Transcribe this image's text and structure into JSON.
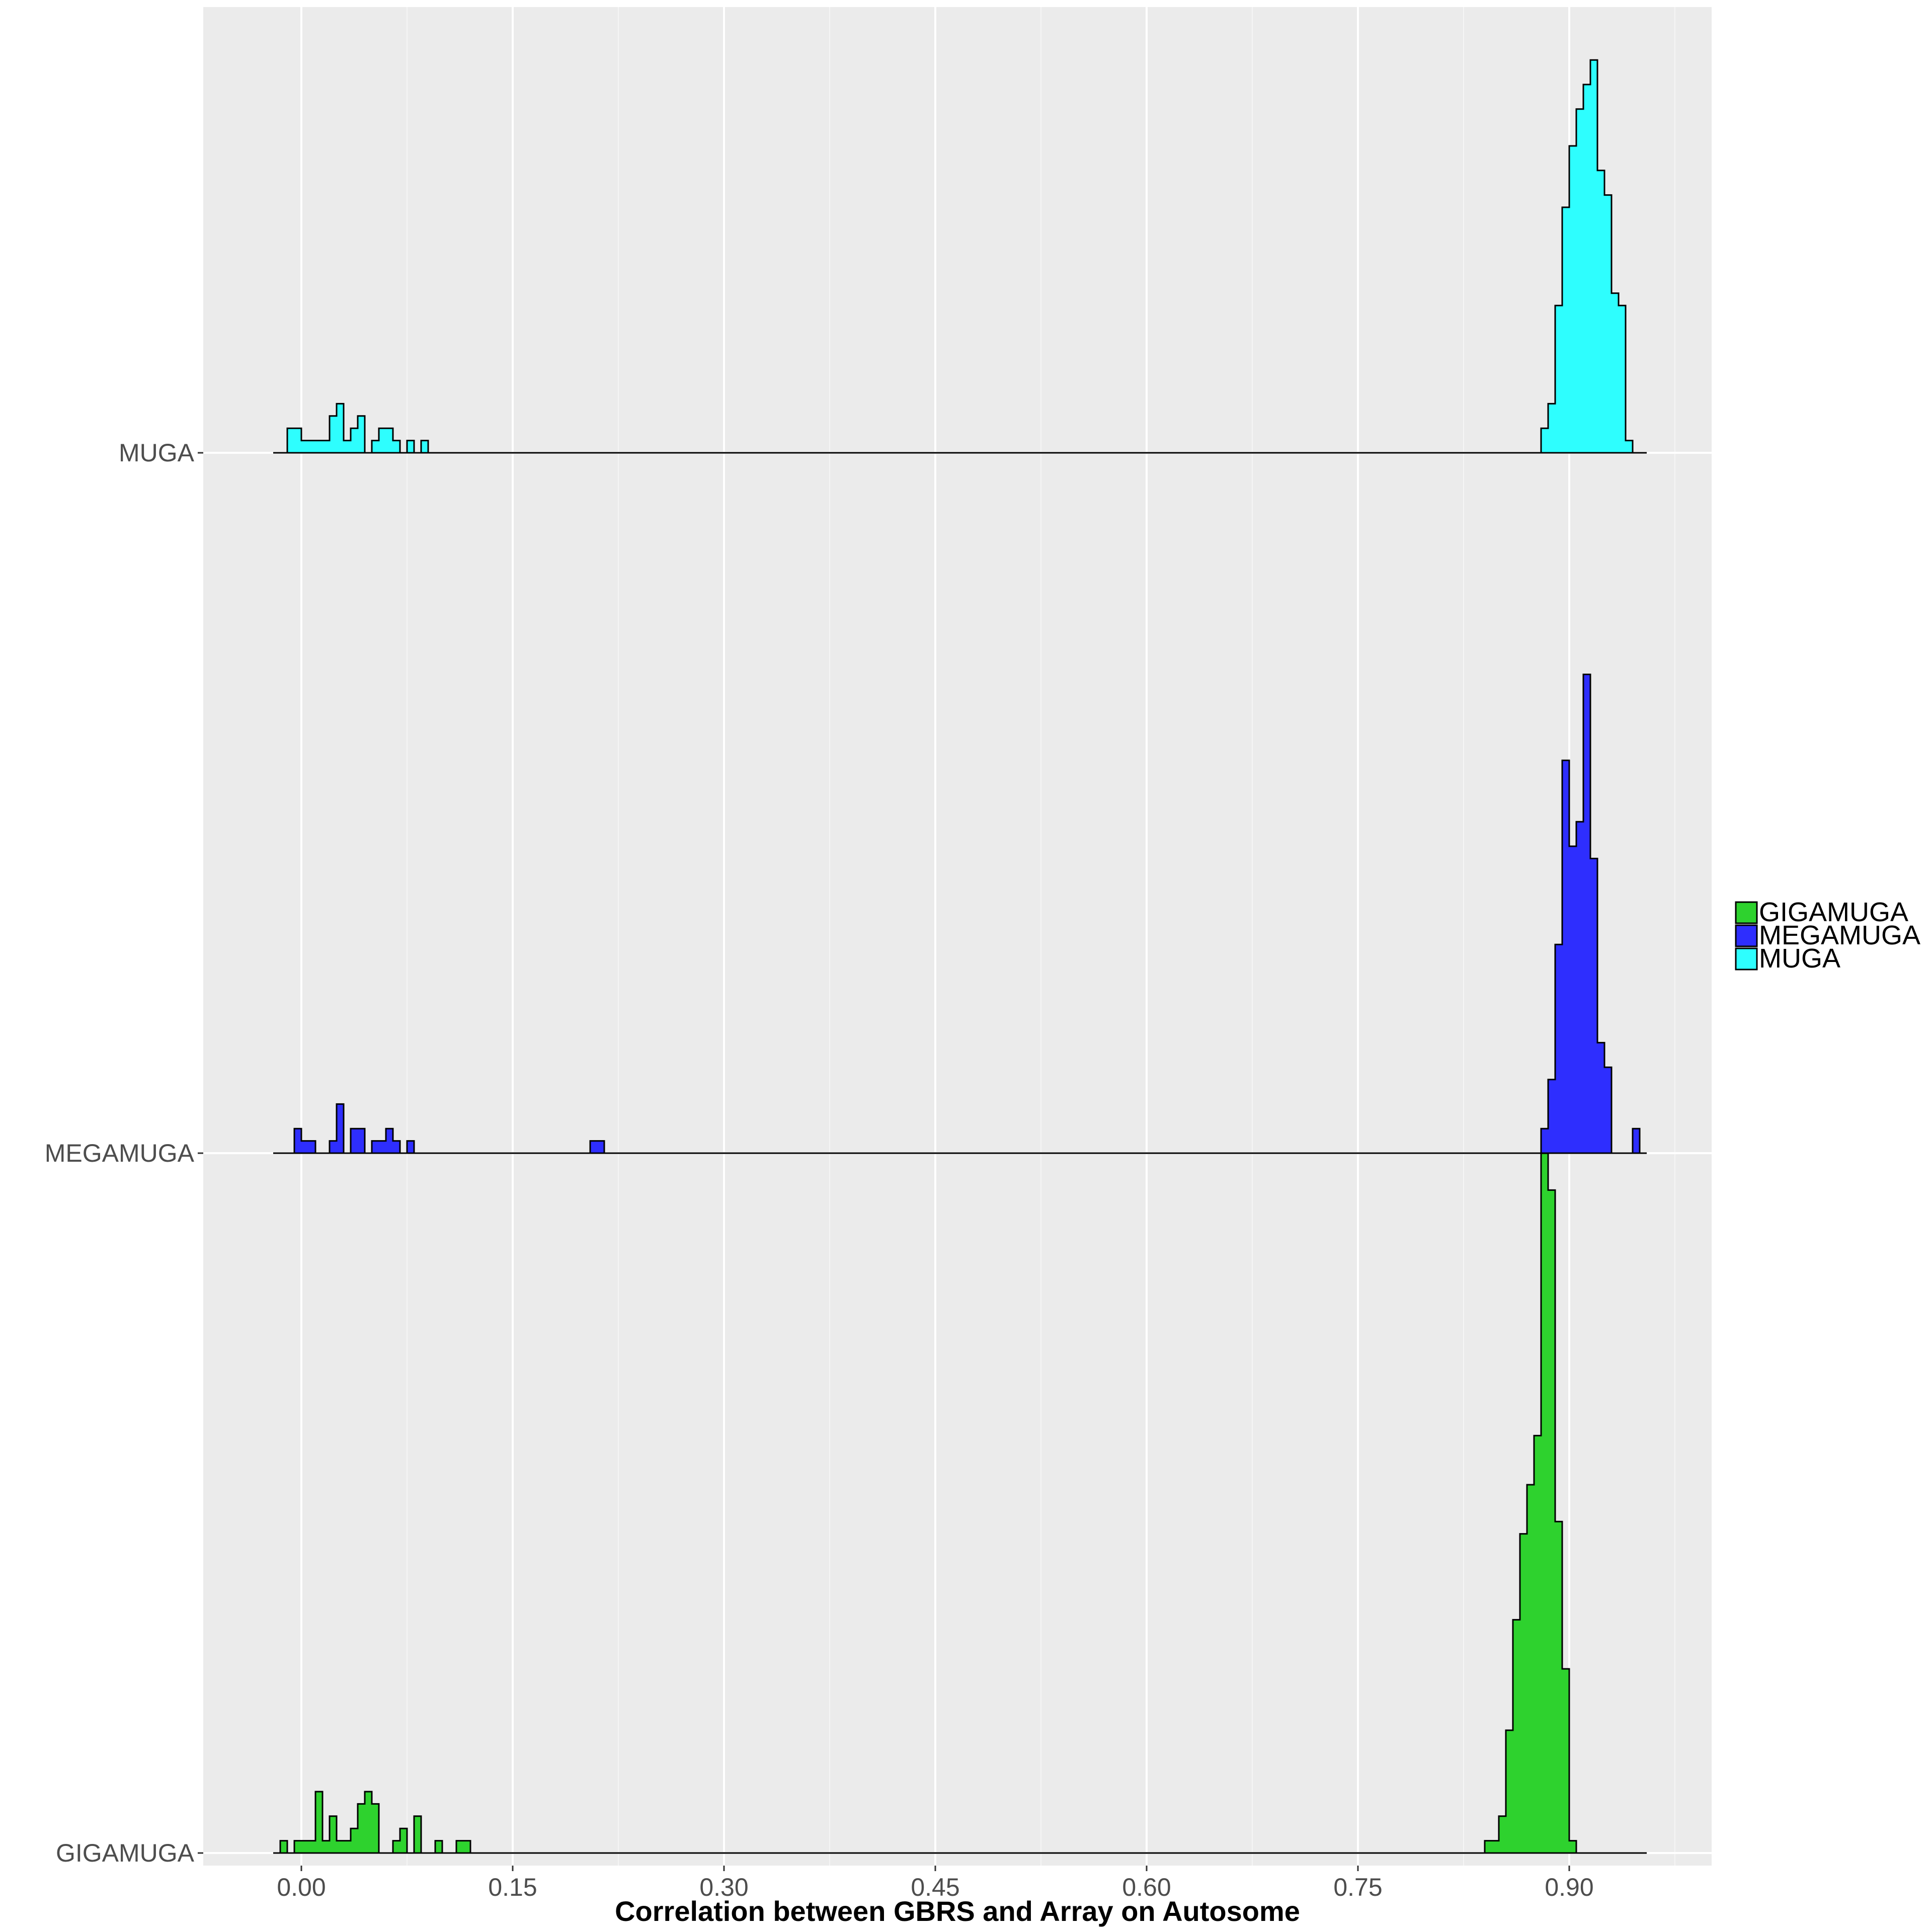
{
  "chart_data": {
    "type": "ridgeline-histogram",
    "title": "",
    "xlabel": "Correlation between GBRS and Array on Autosome",
    "ylabel": "",
    "xlim": [
      -0.045,
      1.03
    ],
    "x_ticks": [
      0.0,
      0.15,
      0.3,
      0.45,
      0.6,
      0.75,
      0.9
    ],
    "x_tick_labels": [
      "0.00",
      "0.15",
      "0.30",
      "0.45",
      "0.60",
      "0.75",
      "0.90"
    ],
    "y_categories": [
      "GIGAMUGA",
      "MEGAMUGA",
      "MUGA"
    ],
    "grid": true,
    "legend": {
      "position": "right",
      "entries": [
        {
          "label": "GIGAMUGA",
          "color": "#2ed22e"
        },
        {
          "label": "MEGAMUGA",
          "color": "#2e2efe"
        },
        {
          "label": "MUGA",
          "color": "#2efefe"
        }
      ]
    },
    "series": [
      {
        "name": "MUGA",
        "color": "#2efefe",
        "bin_width": 0.005,
        "x_range": [
          -0.02,
          0.955
        ],
        "bins": [
          [
            -0.02,
            0
          ],
          [
            -0.01,
            2
          ],
          [
            -0.005,
            2
          ],
          [
            0.0,
            1
          ],
          [
            0.005,
            1
          ],
          [
            0.01,
            1
          ],
          [
            0.015,
            1
          ],
          [
            0.02,
            3
          ],
          [
            0.025,
            4
          ],
          [
            0.03,
            1
          ],
          [
            0.035,
            2
          ],
          [
            0.04,
            3
          ],
          [
            0.045,
            0
          ],
          [
            0.05,
            1
          ],
          [
            0.055,
            2
          ],
          [
            0.06,
            2
          ],
          [
            0.065,
            1
          ],
          [
            0.07,
            0
          ],
          [
            0.075,
            1
          ],
          [
            0.08,
            0
          ],
          [
            0.085,
            1
          ],
          [
            0.88,
            2
          ],
          [
            0.885,
            4
          ],
          [
            0.89,
            12
          ],
          [
            0.895,
            20
          ],
          [
            0.9,
            25
          ],
          [
            0.905,
            28
          ],
          [
            0.91,
            30
          ],
          [
            0.915,
            32
          ],
          [
            0.92,
            23
          ],
          [
            0.925,
            21
          ],
          [
            0.93,
            13
          ],
          [
            0.935,
            12
          ],
          [
            0.94,
            1
          ]
        ]
      },
      {
        "name": "MEGAMUGA",
        "color": "#2e2efe",
        "bin_width": 0.005,
        "x_range": [
          -0.02,
          0.955
        ],
        "bins": [
          [
            -0.005,
            2
          ],
          [
            0.0,
            1
          ],
          [
            0.005,
            1
          ],
          [
            0.01,
            0
          ],
          [
            0.015,
            0
          ],
          [
            0.02,
            1
          ],
          [
            0.025,
            4
          ],
          [
            0.03,
            0
          ],
          [
            0.035,
            2
          ],
          [
            0.04,
            2
          ],
          [
            0.045,
            0
          ],
          [
            0.05,
            1
          ],
          [
            0.055,
            1
          ],
          [
            0.06,
            2
          ],
          [
            0.065,
            1
          ],
          [
            0.07,
            0
          ],
          [
            0.075,
            1
          ],
          [
            0.205,
            1
          ],
          [
            0.21,
            1
          ],
          [
            0.88,
            2
          ],
          [
            0.885,
            6
          ],
          [
            0.89,
            17
          ],
          [
            0.895,
            32
          ],
          [
            0.9,
            25
          ],
          [
            0.905,
            27
          ],
          [
            0.91,
            39
          ],
          [
            0.915,
            24
          ],
          [
            0.92,
            9
          ],
          [
            0.925,
            7
          ],
          [
            0.93,
            0
          ],
          [
            0.935,
            0
          ],
          [
            0.94,
            0
          ],
          [
            0.945,
            2
          ]
        ]
      },
      {
        "name": "GIGAMUGA",
        "color": "#2ed22e",
        "bin_width": 0.005,
        "x_range": [
          -0.02,
          0.955
        ],
        "bins": [
          [
            -0.015,
            1
          ],
          [
            -0.01,
            0
          ],
          [
            -0.005,
            1
          ],
          [
            0.0,
            1
          ],
          [
            0.005,
            1
          ],
          [
            0.01,
            5
          ],
          [
            0.015,
            1
          ],
          [
            0.02,
            3
          ],
          [
            0.025,
            1
          ],
          [
            0.03,
            1
          ],
          [
            0.035,
            2
          ],
          [
            0.04,
            4
          ],
          [
            0.045,
            5
          ],
          [
            0.05,
            4
          ],
          [
            0.055,
            0
          ],
          [
            0.06,
            0
          ],
          [
            0.065,
            1
          ],
          [
            0.07,
            2
          ],
          [
            0.075,
            0
          ],
          [
            0.08,
            3
          ],
          [
            0.085,
            0
          ],
          [
            0.09,
            0
          ],
          [
            0.095,
            1
          ],
          [
            0.1,
            0
          ],
          [
            0.105,
            0
          ],
          [
            0.11,
            1
          ],
          [
            0.115,
            1
          ],
          [
            0.84,
            1
          ],
          [
            0.845,
            1
          ],
          [
            0.85,
            3
          ],
          [
            0.855,
            10
          ],
          [
            0.86,
            19
          ],
          [
            0.865,
            26
          ],
          [
            0.87,
            30
          ],
          [
            0.875,
            34
          ],
          [
            0.88,
            57
          ],
          [
            0.885,
            54
          ],
          [
            0.89,
            27
          ],
          [
            0.895,
            15
          ],
          [
            0.9,
            1
          ],
          [
            0.905,
            0
          ]
        ]
      }
    ]
  }
}
